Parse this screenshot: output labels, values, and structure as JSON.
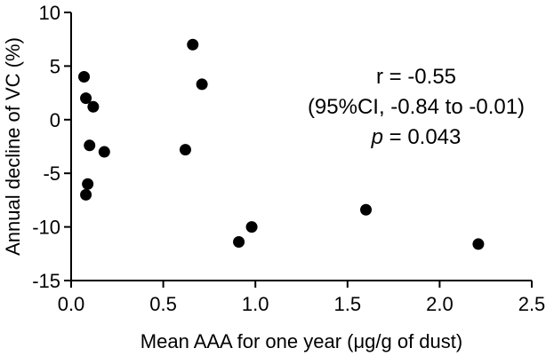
{
  "chart_data": {
    "type": "scatter",
    "xlabel": "Mean AAA for one year (μg/g of dust)",
    "ylabel": "Annual decline of VC (%)",
    "xlim": [
      0.0,
      2.5
    ],
    "ylim": [
      -15,
      10
    ],
    "x_ticks": [
      "0.0",
      "0.5",
      "1.0",
      "1.5",
      "2.0",
      "2.5"
    ],
    "y_ticks": [
      "10",
      "5",
      "0",
      "-5",
      "-10",
      "-15"
    ],
    "x_tick_values": [
      0.0,
      0.5,
      1.0,
      1.5,
      2.0,
      2.5
    ],
    "y_tick_values": [
      10,
      5,
      0,
      -5,
      -10,
      -15
    ],
    "points": [
      {
        "x": 0.07,
        "y": 4.0
      },
      {
        "x": 0.08,
        "y": 2.0
      },
      {
        "x": 0.12,
        "y": 1.2
      },
      {
        "x": 0.1,
        "y": -2.4
      },
      {
        "x": 0.18,
        "y": -3.0
      },
      {
        "x": 0.09,
        "y": -6.0
      },
      {
        "x": 0.08,
        "y": -7.0
      },
      {
        "x": 0.66,
        "y": 7.0
      },
      {
        "x": 0.71,
        "y": 3.3
      },
      {
        "x": 0.62,
        "y": -2.8
      },
      {
        "x": 0.91,
        "y": -11.4
      },
      {
        "x": 0.98,
        "y": -10.0
      },
      {
        "x": 1.6,
        "y": -8.4
      },
      {
        "x": 2.21,
        "y": -11.6
      }
    ],
    "grid": false,
    "legend": "none",
    "annotation": {
      "line1": "r = -0.55",
      "line2": "(95%CI, -0.84 to -0.01)",
      "line3_p": "p",
      "line3_rest": " = 0.043"
    },
    "colors": {
      "point": "#000000",
      "axis": "#000000",
      "background": "#ffffff"
    }
  }
}
